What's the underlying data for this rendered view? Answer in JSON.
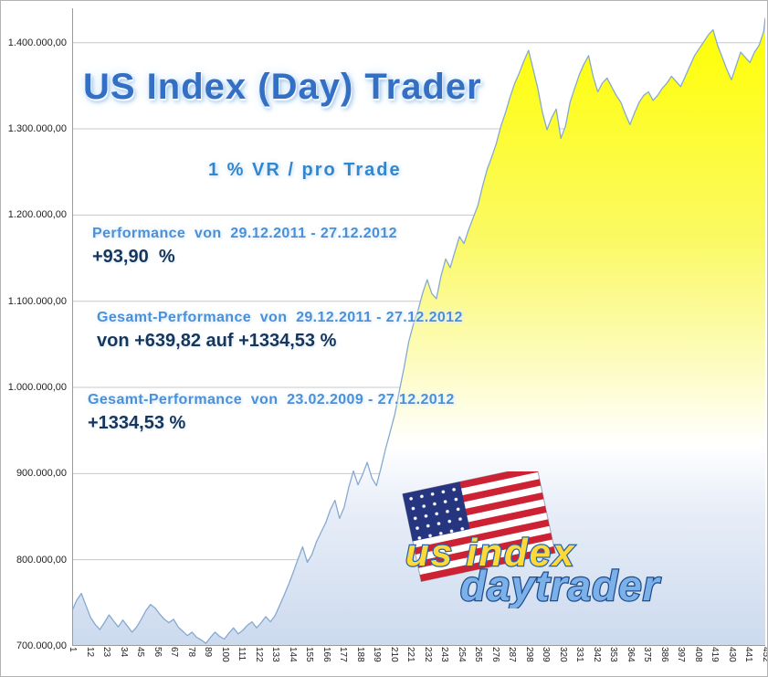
{
  "title": "US Index (Day) Trader",
  "subtitle": "1 % VR / pro Trade",
  "annotations": [
    {
      "label": "Performance  von  29.12.2011 - 27.12.2012",
      "value": "+93,90  %"
    },
    {
      "label": "Gesamt-Performance  von  29.12.2011 - 27.12.2012",
      "value": "von +639,82 auf +1334,53 %"
    },
    {
      "label": "Gesamt-Performance  von  23.02.2009 - 27.12.2012",
      "value": "+1334,53 %"
    }
  ],
  "logo": {
    "line1": "us index",
    "line2": "daytrader"
  },
  "chart_data": {
    "type": "area",
    "title": "US Index (Day) Trader",
    "xlabel": "",
    "ylabel": "",
    "grid": true,
    "ylim": [
      700000,
      1440000
    ],
    "x_range": [
      1,
      452
    ],
    "y_ticks": [
      {
        "value": 700000,
        "label": "700.000,00"
      },
      {
        "value": 800000,
        "label": "800.000,00"
      },
      {
        "value": 900000,
        "label": "900.000,00"
      },
      {
        "value": 1000000,
        "label": "1.000.000,00"
      },
      {
        "value": 1100000,
        "label": "1.100.000,00"
      },
      {
        "value": 1200000,
        "label": "1.200.000,00"
      },
      {
        "value": 1300000,
        "label": "1.300.000,00"
      },
      {
        "value": 1400000,
        "label": "1.400.000,00"
      }
    ],
    "x_ticks": [
      "1",
      "12",
      "23",
      "34",
      "45",
      "56",
      "67",
      "78",
      "89",
      "100",
      "111",
      "122",
      "133",
      "144",
      "155",
      "166",
      "177",
      "188",
      "199",
      "210",
      "221",
      "232",
      "243",
      "254",
      "265",
      "276",
      "287",
      "298",
      "309",
      "320",
      "331",
      "342",
      "353",
      "364",
      "375",
      "386",
      "397",
      "408",
      "419",
      "430",
      "441",
      "452"
    ],
    "colors": {
      "line": "#86a9d2",
      "grid": "#c8c8c8",
      "axis": "#9b9b9b",
      "fill_stops": [
        {
          "offset": 0,
          "color": "#ffff00"
        },
        {
          "offset": 0.35,
          "color": "#fbf963"
        },
        {
          "offset": 0.55,
          "color": "#fdfcc0"
        },
        {
          "offset": 0.68,
          "color": "#ffffff"
        },
        {
          "offset": 0.78,
          "color": "#e8eef8"
        },
        {
          "offset": 1,
          "color": "#ccdaee"
        }
      ]
    },
    "series": [
      {
        "name": "Equity",
        "points": [
          [
            1,
            741000
          ],
          [
            4,
            753000
          ],
          [
            7,
            761000
          ],
          [
            10,
            747000
          ],
          [
            13,
            733000
          ],
          [
            16,
            725000
          ],
          [
            19,
            719000
          ],
          [
            22,
            727000
          ],
          [
            25,
            736000
          ],
          [
            28,
            729000
          ],
          [
            31,
            722000
          ],
          [
            34,
            730000
          ],
          [
            37,
            723000
          ],
          [
            40,
            716000
          ],
          [
            43,
            722000
          ],
          [
            46,
            731000
          ],
          [
            49,
            741000
          ],
          [
            52,
            748000
          ],
          [
            55,
            744000
          ],
          [
            58,
            737000
          ],
          [
            61,
            731000
          ],
          [
            64,
            727000
          ],
          [
            67,
            731000
          ],
          [
            70,
            722000
          ],
          [
            73,
            717000
          ],
          [
            76,
            712000
          ],
          [
            79,
            716000
          ],
          [
            82,
            710000
          ],
          [
            85,
            707000
          ],
          [
            88,
            703000
          ],
          [
            91,
            710000
          ],
          [
            94,
            716000
          ],
          [
            97,
            711000
          ],
          [
            100,
            708000
          ],
          [
            103,
            715000
          ],
          [
            106,
            721000
          ],
          [
            109,
            714000
          ],
          [
            112,
            718000
          ],
          [
            115,
            724000
          ],
          [
            118,
            728000
          ],
          [
            121,
            721000
          ],
          [
            124,
            727000
          ],
          [
            127,
            734000
          ],
          [
            130,
            728000
          ],
          [
            133,
            735000
          ],
          [
            136,
            747000
          ],
          [
            139,
            759000
          ],
          [
            142,
            772000
          ],
          [
            145,
            786000
          ],
          [
            148,
            801000
          ],
          [
            151,
            815000
          ],
          [
            154,
            797000
          ],
          [
            157,
            806000
          ],
          [
            160,
            821000
          ],
          [
            163,
            832000
          ],
          [
            166,
            843000
          ],
          [
            169,
            858000
          ],
          [
            172,
            869000
          ],
          [
            175,
            848000
          ],
          [
            178,
            861000
          ],
          [
            181,
            884000
          ],
          [
            184,
            903000
          ],
          [
            187,
            887000
          ],
          [
            190,
            899000
          ],
          [
            193,
            913000
          ],
          [
            196,
            895000
          ],
          [
            199,
            886000
          ],
          [
            202,
            907000
          ],
          [
            205,
            929000
          ],
          [
            208,
            949000
          ],
          [
            211,
            969000
          ],
          [
            214,
            997000
          ],
          [
            217,
            1023000
          ],
          [
            220,
            1053000
          ],
          [
            223,
            1073000
          ],
          [
            226,
            1089000
          ],
          [
            229,
            1109000
          ],
          [
            232,
            1125000
          ],
          [
            235,
            1109000
          ],
          [
            238,
            1103000
          ],
          [
            241,
            1129000
          ],
          [
            244,
            1149000
          ],
          [
            247,
            1139000
          ],
          [
            250,
            1157000
          ],
          [
            253,
            1175000
          ],
          [
            256,
            1167000
          ],
          [
            259,
            1183000
          ],
          [
            262,
            1197000
          ],
          [
            265,
            1211000
          ],
          [
            268,
            1233000
          ],
          [
            271,
            1253000
          ],
          [
            274,
            1267000
          ],
          [
            277,
            1283000
          ],
          [
            280,
            1303000
          ],
          [
            283,
            1319000
          ],
          [
            286,
            1337000
          ],
          [
            289,
            1353000
          ],
          [
            292,
            1365000
          ],
          [
            295,
            1379000
          ],
          [
            298,
            1391000
          ],
          [
            301,
            1369000
          ],
          [
            304,
            1347000
          ],
          [
            307,
            1319000
          ],
          [
            310,
            1299000
          ],
          [
            313,
            1313000
          ],
          [
            316,
            1323000
          ],
          [
            319,
            1289000
          ],
          [
            322,
            1303000
          ],
          [
            325,
            1331000
          ],
          [
            328,
            1347000
          ],
          [
            331,
            1363000
          ],
          [
            334,
            1375000
          ],
          [
            337,
            1385000
          ],
          [
            340,
            1361000
          ],
          [
            343,
            1343000
          ],
          [
            346,
            1353000
          ],
          [
            349,
            1359000
          ],
          [
            352,
            1349000
          ],
          [
            355,
            1339000
          ],
          [
            358,
            1331000
          ],
          [
            361,
            1317000
          ],
          [
            364,
            1305000
          ],
          [
            367,
            1319000
          ],
          [
            370,
            1331000
          ],
          [
            373,
            1339000
          ],
          [
            376,
            1343000
          ],
          [
            379,
            1333000
          ],
          [
            382,
            1339000
          ],
          [
            385,
            1347000
          ],
          [
            388,
            1353000
          ],
          [
            391,
            1361000
          ],
          [
            394,
            1355000
          ],
          [
            397,
            1349000
          ],
          [
            400,
            1361000
          ],
          [
            403,
            1373000
          ],
          [
            406,
            1385000
          ],
          [
            409,
            1393000
          ],
          [
            412,
            1401000
          ],
          [
            415,
            1409000
          ],
          [
            418,
            1415000
          ],
          [
            421,
            1397000
          ],
          [
            424,
            1383000
          ],
          [
            427,
            1369000
          ],
          [
            430,
            1357000
          ],
          [
            433,
            1373000
          ],
          [
            436,
            1389000
          ],
          [
            439,
            1383000
          ],
          [
            442,
            1377000
          ],
          [
            445,
            1389000
          ],
          [
            448,
            1397000
          ],
          [
            451,
            1413000
          ],
          [
            452,
            1429000
          ]
        ]
      }
    ]
  }
}
